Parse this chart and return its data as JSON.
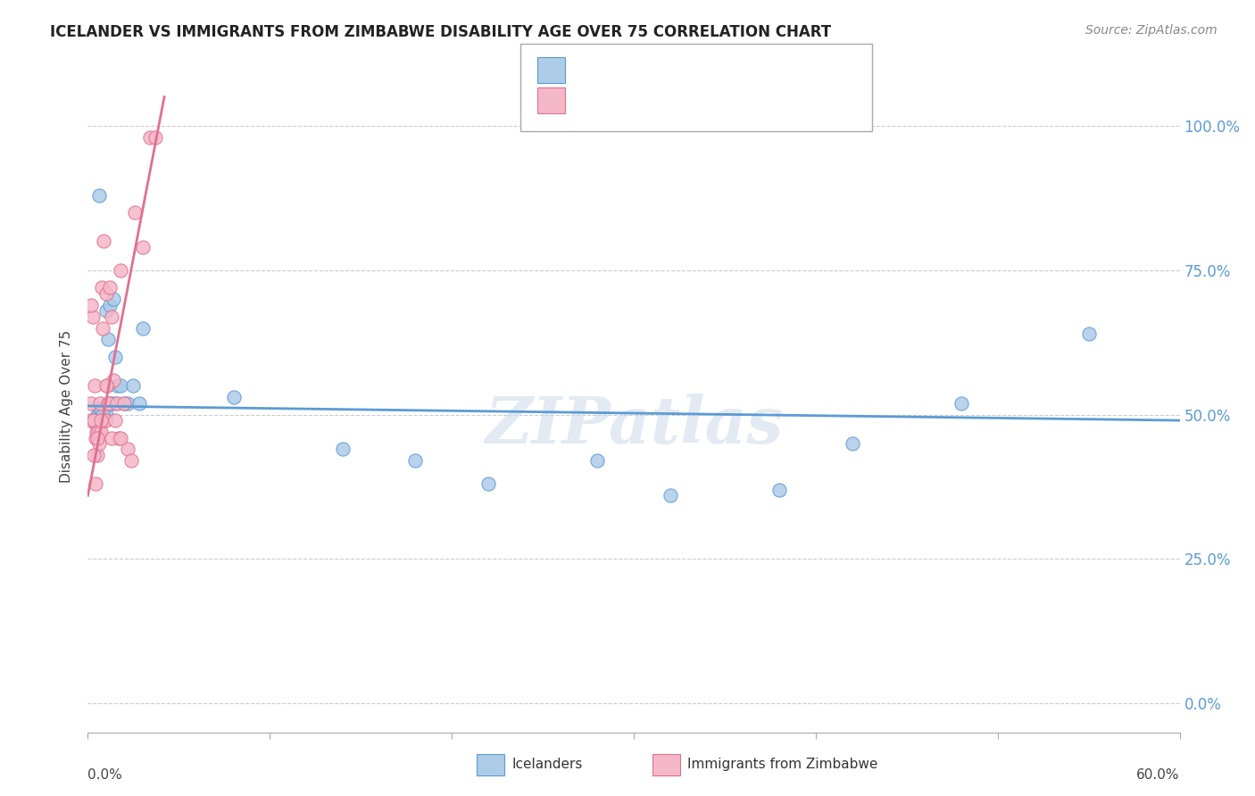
{
  "title": "ICELANDER VS IMMIGRANTS FROM ZIMBABWE DISABILITY AGE OVER 75 CORRELATION CHART",
  "source": "Source: ZipAtlas.com",
  "ylabel": "Disability Age Over 75",
  "ytick_labels": [
    "0.0%",
    "25.0%",
    "50.0%",
    "75.0%",
    "100.0%"
  ],
  "ytick_values": [
    0,
    25,
    50,
    75,
    100
  ],
  "xlim": [
    0,
    60
  ],
  "ylim": [
    -5,
    108
  ],
  "blue_color": "#aecbe8",
  "pink_color": "#f5b8c8",
  "blue_line_color": "#5b9bd5",
  "pink_line_color": "#e07090",
  "watermark": "ZIPatlas",
  "blue_x": [
    0.3,
    0.4,
    0.5,
    0.6,
    0.7,
    0.8,
    0.9,
    1.0,
    1.1,
    1.2,
    1.4,
    1.6,
    1.8,
    2.0,
    2.5,
    3.0,
    1.2,
    1.5,
    2.2,
    2.8,
    0.5,
    0.7,
    1.0,
    1.3,
    0.8,
    1.5,
    8.0,
    14.0,
    18.0,
    22.0,
    28.0,
    38.0,
    55.0,
    48.0,
    42.0,
    32.0,
    0.6
  ],
  "blue_y": [
    49,
    49,
    50,
    51,
    50,
    49,
    50,
    68,
    63,
    69,
    70,
    55,
    55,
    52,
    55,
    65,
    52,
    60,
    52,
    52,
    48,
    51,
    50,
    52,
    50,
    52,
    53,
    44,
    42,
    38,
    42,
    37,
    64,
    52,
    45,
    36,
    88
  ],
  "pink_x": [
    0.15,
    0.2,
    0.25,
    0.3,
    0.35,
    0.4,
    0.45,
    0.5,
    0.55,
    0.6,
    0.65,
    0.7,
    0.75,
    0.8,
    0.85,
    0.9,
    0.95,
    1.0,
    1.05,
    1.1,
    1.15,
    1.2,
    1.3,
    1.4,
    1.5,
    1.6,
    1.7,
    1.8,
    2.0,
    2.2,
    2.4,
    2.6,
    3.0,
    3.4,
    3.7,
    0.3,
    0.5,
    0.7,
    1.0,
    1.3,
    1.8,
    0.2,
    0.4
  ],
  "pink_y": [
    49,
    52,
    67,
    49,
    55,
    46,
    47,
    43,
    47,
    45,
    52,
    47,
    72,
    65,
    80,
    49,
    49,
    71,
    55,
    52,
    52,
    72,
    67,
    56,
    49,
    52,
    46,
    75,
    52,
    44,
    42,
    85,
    79,
    98,
    98,
    43,
    46,
    49,
    55,
    46,
    46,
    69,
    38
  ],
  "pink_trendline_x": [
    0,
    4.2
  ],
  "pink_trendline_y": [
    36,
    105
  ],
  "blue_trendline_x": [
    0,
    60
  ],
  "blue_trendline_y": [
    51.5,
    49.0
  ]
}
